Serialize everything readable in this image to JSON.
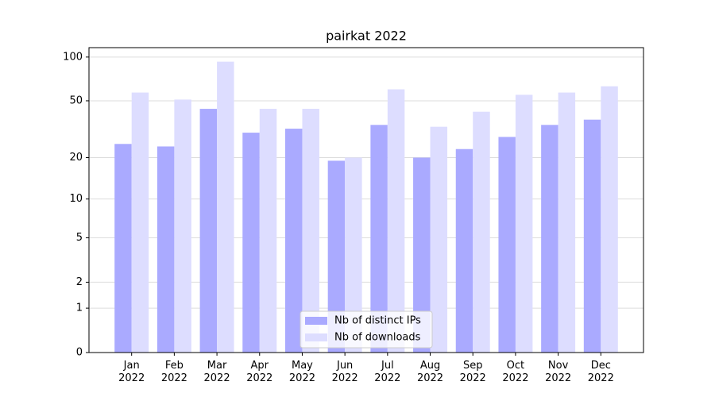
{
  "chart_data": {
    "type": "bar",
    "title": "pairkat 2022",
    "categories": [
      "Jan\n2022",
      "Feb\n2022",
      "Mar\n2022",
      "Apr\n2022",
      "May\n2022",
      "Jun\n2022",
      "Jul\n2022",
      "Aug\n2022",
      "Sep\n2022",
      "Oct\n2022",
      "Nov\n2022",
      "Dec\n2022"
    ],
    "series": [
      {
        "name": "Nb of distinct IPs",
        "color": "#aaaaff",
        "values": [
          25,
          24,
          44,
          30,
          32,
          19,
          34,
          20,
          23,
          28,
          34,
          37
        ]
      },
      {
        "name": "Nb of downloads",
        "color": "#ddddff",
        "values": [
          57,
          51,
          93,
          44,
          44,
          20,
          60,
          33,
          42,
          55,
          57,
          63
        ]
      }
    ],
    "yscale": "log1p",
    "ylim": [
      0,
      116
    ],
    "yticks": [
      0,
      1,
      2,
      5,
      10,
      20,
      50,
      100
    ],
    "grid": true,
    "legend": "lower center"
  }
}
